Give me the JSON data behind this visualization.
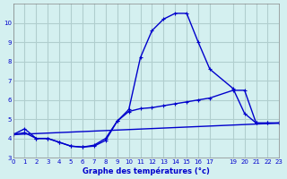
{
  "xlabel": "Graphe des températures (°c)",
  "background_color": "#d4f0f0",
  "grid_color": "#b0cece",
  "line_color": "#0000cc",
  "xlim": [
    0,
    23
  ],
  "ylim": [
    3,
    11
  ],
  "yticks": [
    3,
    4,
    5,
    6,
    7,
    8,
    9,
    10
  ],
  "xticks": [
    0,
    1,
    2,
    3,
    4,
    5,
    6,
    7,
    8,
    9,
    10,
    11,
    12,
    13,
    14,
    15,
    16,
    17,
    19,
    20,
    21,
    22,
    23
  ],
  "line1_x": [
    0,
    1,
    2,
    3,
    4,
    5,
    6,
    7,
    8,
    9,
    10,
    11,
    12,
    13,
    14,
    15,
    16,
    17,
    19,
    20,
    21,
    22,
    23
  ],
  "line1_y": [
    4.2,
    4.5,
    4.0,
    4.0,
    3.8,
    3.6,
    3.55,
    3.6,
    3.9,
    4.9,
    5.5,
    8.2,
    9.6,
    10.2,
    10.5,
    10.5,
    9.0,
    7.6,
    6.6,
    5.3,
    4.8,
    4.8,
    4.8
  ],
  "line2_x": [
    0,
    1,
    2,
    3,
    4,
    5,
    6,
    7,
    8,
    9,
    10,
    11,
    12,
    13,
    14,
    15,
    16,
    17,
    19,
    20,
    21,
    22,
    23
  ],
  "line2_y": [
    4.2,
    4.3,
    4.0,
    4.0,
    3.8,
    3.6,
    3.55,
    3.65,
    4.0,
    4.9,
    5.4,
    5.55,
    5.6,
    5.7,
    5.8,
    5.9,
    6.0,
    6.1,
    6.5,
    6.5,
    4.8,
    4.8,
    4.8
  ],
  "line3_x": [
    0,
    23
  ],
  "line3_y": [
    4.2,
    4.8
  ],
  "marker_size": 3,
  "linewidth": 1.0
}
